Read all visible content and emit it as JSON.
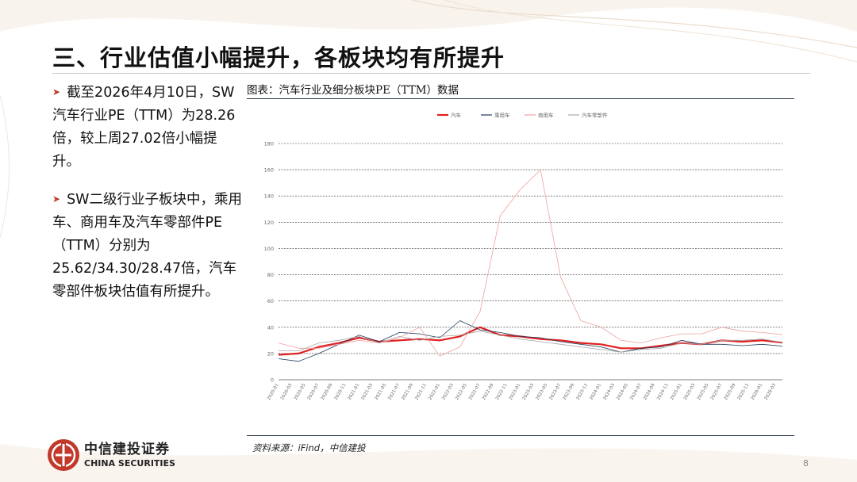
{
  "title": "三、行业估值小幅提升，各板块均有所提升",
  "bullets": [
    "截至2026年4月10日，SW汽车行业PE（TTM）为28.26倍，较上周27.02倍小幅提升。",
    "SW二级行业子板块中，乘用车、商用车及汽车零部件PE（TTM）分别为25.62/34.30/28.47倍，汽车零部件板块估值有所提升。"
  ],
  "chart_title": "图表：汽车行业及细分板块PE（TTM）数据",
  "source": "资料来源：iFind，中信建投",
  "page_number": "8",
  "logo": {
    "cn": "中信建投证券",
    "en": "CHINA SECURITIES"
  },
  "colors": {
    "auto": "#e02020",
    "passenger": "#1f3b5a",
    "commercial": "#f0a0a0",
    "parts": "#a8a8a8",
    "accent": "#c0392b"
  },
  "chart_data": {
    "type": "line",
    "ylim": [
      0,
      180
    ],
    "yticks": [
      0,
      20,
      40,
      60,
      80,
      100,
      120,
      140,
      160,
      180
    ],
    "grid": "horizontal dashed",
    "legend_position": "top",
    "x_tick_labels": [
      "2020-01",
      "2020-03",
      "2020-05",
      "2020-07",
      "2020-09",
      "2020-11",
      "2021-01",
      "2021-03",
      "2021-05",
      "2021-07",
      "2021-09",
      "2021-11",
      "2022-01",
      "2022-03",
      "2022-05",
      "2022-07",
      "2022-09",
      "2022-11",
      "2023-01",
      "2023-03",
      "2023-05",
      "2023-07",
      "2023-09",
      "2023-11",
      "2024-01",
      "2024-03",
      "2024-05",
      "2024-07",
      "2024-09",
      "2024-11",
      "2025-01",
      "2025-03",
      "2025-05",
      "2025-07",
      "2025-09",
      "2025-11",
      "2026-01",
      "2026-03"
    ],
    "x_months": [
      "2020-01",
      "2020-04",
      "2020-07",
      "2020-10",
      "2021-01",
      "2021-04",
      "2021-07",
      "2021-10",
      "2022-01",
      "2022-04",
      "2022-07",
      "2022-10",
      "2023-01",
      "2023-04",
      "2023-07",
      "2023-10",
      "2024-01",
      "2024-04",
      "2024-07",
      "2024-10",
      "2025-01",
      "2025-04",
      "2025-07",
      "2025-10",
      "2026-01",
      "2026-04"
    ],
    "series": [
      {
        "name": "汽车",
        "color": "#e02020",
        "width": 2.2,
        "values": [
          19,
          20,
          25,
          28,
          32,
          29,
          30,
          31,
          30,
          33,
          40,
          34,
          33,
          31,
          30,
          28,
          27,
          24,
          24,
          26,
          28,
          27,
          30,
          29,
          30,
          28.26
        ]
      },
      {
        "name": "乘用车",
        "color": "#1f3b5a",
        "width": 0.8,
        "values": [
          16,
          14,
          20,
          27,
          34,
          29,
          36,
          35,
          32,
          45,
          38,
          36,
          33,
          32,
          29,
          27,
          25,
          21,
          24,
          25,
          30,
          27,
          27,
          26,
          27,
          25.62
        ]
      },
      {
        "name": "商用车",
        "color": "#f0a0a0",
        "width": 0.8,
        "values": [
          28,
          24,
          24,
          27,
          30,
          28,
          32,
          40,
          18,
          25,
          52,
          125,
          145,
          160,
          78,
          45,
          40,
          30,
          28,
          32,
          35,
          35,
          40,
          37,
          36,
          34.3
        ]
      },
      {
        "name": "汽车零部件",
        "color": "#a8a8a8",
        "width": 0.8,
        "values": [
          22,
          22,
          28,
          30,
          33,
          28,
          33,
          30,
          33,
          34,
          37,
          34,
          31,
          29,
          27,
          25,
          23,
          21,
          23,
          24,
          28,
          27,
          30,
          30,
          31,
          28.47
        ]
      }
    ]
  }
}
